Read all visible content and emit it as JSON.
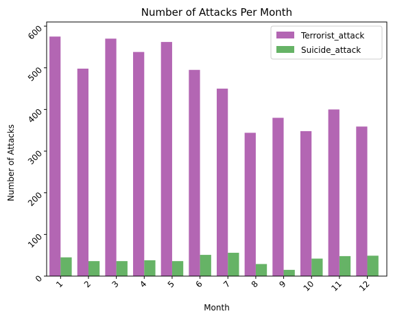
{
  "chart_data": {
    "type": "bar",
    "title": "Number of Attacks Per Month",
    "xlabel": "Month",
    "ylabel": "Number of Attacks",
    "categories": [
      "1",
      "2",
      "3",
      "4",
      "5",
      "6",
      "7",
      "8",
      "9",
      "10",
      "11",
      "12"
    ],
    "ylim": [
      0,
      610
    ],
    "yticks": [
      0,
      100,
      200,
      300,
      400,
      500,
      600
    ],
    "grid": false,
    "legend_position": "top-right",
    "series": [
      {
        "name": "Terrorist_attack",
        "color": "#b366b3",
        "values": [
          575,
          498,
          570,
          538,
          562,
          495,
          450,
          344,
          380,
          348,
          400,
          359
        ]
      },
      {
        "name": "Suicide_attack",
        "color": "#66b366",
        "values": [
          45,
          36,
          36,
          38,
          36,
          51,
          56,
          29,
          15,
          42,
          48,
          49
        ]
      }
    ]
  }
}
